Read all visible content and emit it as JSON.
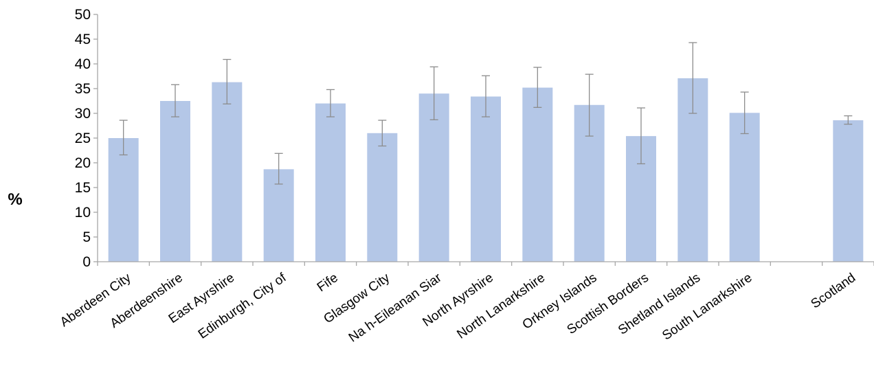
{
  "chart_data": {
    "type": "bar",
    "title": "",
    "xlabel": "",
    "ylabel": "%",
    "ylim": [
      0,
      50
    ],
    "yticks": [
      0,
      5,
      10,
      15,
      20,
      25,
      30,
      35,
      40,
      45,
      50
    ],
    "grid": false,
    "legend": "none",
    "colors": {
      "bar": "#b4c7e7",
      "error_bar": "#8c8c8c",
      "axis": "#a6a6a6"
    },
    "categories": [
      "Aberdeen City",
      "Aberdeenshire",
      "East Ayrshire",
      "Edinburgh, City of",
      "Fife",
      "Glasgow City",
      "Na h-Eileanan Siar",
      "North Ayrshire",
      "North Lanarkshire",
      "Orkney Islands",
      "Scottish Borders",
      "Shetland Islands",
      "South Lanarkshire",
      "",
      "Scotland"
    ],
    "values": [
      25.0,
      32.5,
      36.3,
      18.7,
      32.0,
      26.0,
      34.0,
      33.4,
      35.2,
      31.7,
      25.4,
      37.1,
      30.1,
      null,
      28.6
    ],
    "error_low": [
      21.6,
      29.3,
      31.9,
      15.7,
      29.3,
      23.4,
      28.7,
      29.3,
      31.2,
      25.4,
      19.8,
      30.0,
      25.9,
      null,
      27.8
    ],
    "error_high": [
      28.6,
      35.8,
      40.9,
      21.9,
      34.8,
      28.6,
      39.4,
      37.6,
      39.3,
      37.9,
      31.1,
      44.3,
      34.3,
      null,
      29.5
    ]
  }
}
